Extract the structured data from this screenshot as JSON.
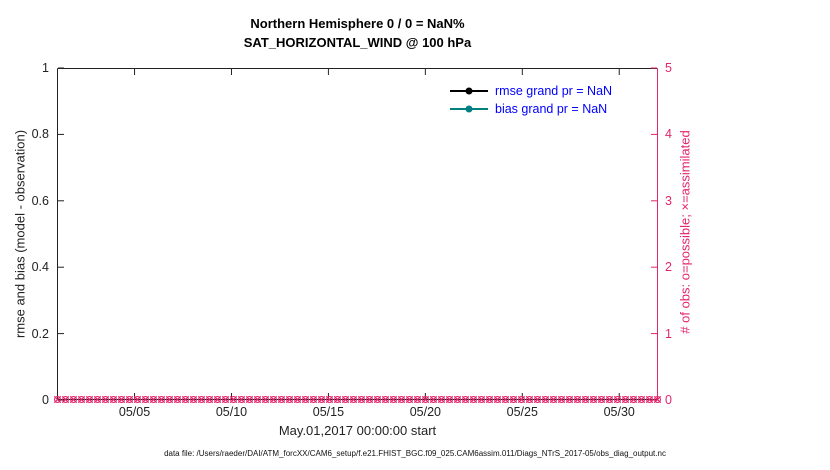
{
  "figure": {
    "title_line1": "Northern Hemisphere 0 / 0 = NaN%",
    "title_line2": "SAT_HORIZONTAL_WIND @ 100 hPa",
    "footer": "data file: /Users/raeder/DAI/ATM_forcXX/CAM6_setup/f.e21.FHIST_BGC.f09_025.CAM6assim.011/Diags_NTrS_2017-05/obs_diag_output.nc"
  },
  "colors": {
    "axis": "#222222",
    "right_axis": "#e3256b",
    "legend_text": "#0000ff",
    "rmse": "#000000",
    "bias": "#008080"
  },
  "chart_data": {
    "type": "line",
    "title": "Northern Hemisphere 0 / 0 = NaN%",
    "subtitle": "SAT_HORIZONTAL_WIND @ 100 hPa",
    "xlabel": "May.01,2017 00:00:00 start",
    "ylabel_left": "rmse and bias (model - observation)",
    "ylabel_right": "# of obs: o=possible; ×=assimilated",
    "grid": false,
    "legend_position": "top-right-inside",
    "ylim_left": [
      0,
      1
    ],
    "ytick_labels_left": [
      "0",
      "0.2",
      "0.4",
      "0.6",
      "0.8",
      "1"
    ],
    "ylim_right": [
      0,
      5
    ],
    "ytick_labels_right": [
      "0",
      "1",
      "2",
      "3",
      "4",
      "5"
    ],
    "xlim_days": [
      1,
      32
    ],
    "xtick_days": [
      5,
      10,
      15,
      20,
      25,
      30
    ],
    "xtick_labels": [
      "05/05",
      "05/10",
      "05/15",
      "05/20",
      "05/25",
      "05/30"
    ],
    "legend": [
      {
        "label": "rmse grand pr = NaN",
        "color": "#000000"
      },
      {
        "label": "bias grand pr = NaN",
        "color": "#008080"
      }
    ],
    "series": [
      {
        "name": "rmse",
        "color": "#000000",
        "values": []
      },
      {
        "name": "bias",
        "color": "#008080",
        "values": []
      }
    ],
    "obs_markers": {
      "color": "#e3256b",
      "value": 0,
      "count": 76,
      "possible_marker": "o",
      "assimilated_marker": "x"
    },
    "note": "0 of 0 observations; rmse and bias are NaN (no curves drawn); possible and assimilated obs counts are all 0 along the bottom axis"
  }
}
